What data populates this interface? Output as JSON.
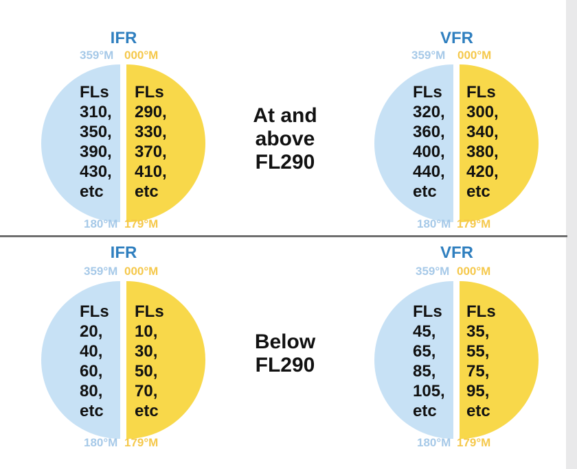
{
  "colors": {
    "title_blue": "#2f7fbf",
    "west_half": "#c7e1f5",
    "east_half": "#f8d84a",
    "bearing_blue": "#a6c9e8",
    "bearing_yellow": "#f5c84b",
    "divider": "#6e6e6e"
  },
  "sections": [
    {
      "center_label": "At and\nabove\nFL290",
      "panels": [
        {
          "rule": "IFR",
          "top_left": "359°M",
          "top_right": "000°M",
          "west_levels": "FLs\n310,\n350,\n390,\n430,\netc",
          "east_levels": "FLs\n290,\n330,\n370,\n410,\netc",
          "bottom_left": "180°M",
          "bottom_right": "179°M"
        },
        {
          "rule": "VFR",
          "top_left": "359°M",
          "top_right": "000°M",
          "west_levels": "FLs\n320,\n360,\n400,\n440,\netc",
          "east_levels": "FLs\n300,\n340,\n380,\n420,\netc",
          "bottom_left": "180°M",
          "bottom_right": "179°M"
        }
      ]
    },
    {
      "center_label": "Below\nFL290",
      "panels": [
        {
          "rule": "IFR",
          "top_left": "359°M",
          "top_right": "000°M",
          "west_levels": "FLs\n20,\n40,\n60,\n80,\netc",
          "east_levels": "FLs\n10,\n30,\n50,\n70,\netc",
          "bottom_left": "180°M",
          "bottom_right": "179°M"
        },
        {
          "rule": "VFR",
          "top_left": "359°M",
          "top_right": "000°M",
          "west_levels": "FLs\n45,\n65,\n85,\n105,\netc",
          "east_levels": "FLs\n35,\n55,\n75,\n95,\netc",
          "bottom_left": "180°M",
          "bottom_right": "179°M"
        }
      ]
    }
  ]
}
